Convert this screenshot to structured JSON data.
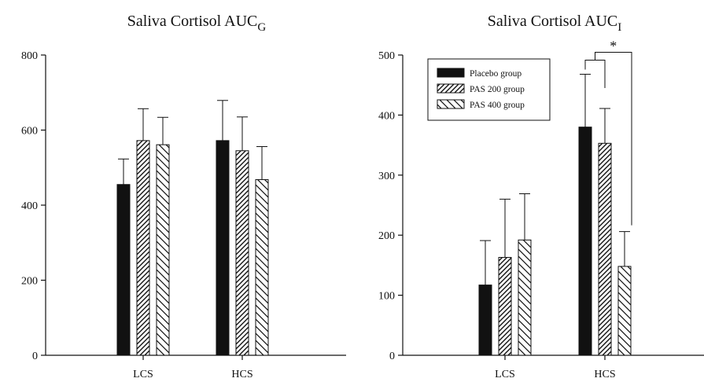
{
  "chart_data": [
    {
      "type": "bar",
      "title": "Saliva Cortisol AUC",
      "title_subscript": "G",
      "xlabel": "",
      "ylabel": "",
      "categories": [
        "LCS",
        "HCS"
      ],
      "ylim": [
        0,
        800
      ],
      "yticks": [
        0,
        200,
        400,
        600,
        800
      ],
      "grid": false,
      "series": [
        {
          "name": "Placebo group",
          "values": [
            455,
            572
          ],
          "errors": [
            68,
            107
          ],
          "fill": "solid",
          "color": "#111111"
        },
        {
          "name": "PAS 200 group",
          "values": [
            572,
            545
          ],
          "errors": [
            85,
            90
          ],
          "fill": "dense-diagonal",
          "color": "#111111"
        },
        {
          "name": "PAS 400 group",
          "values": [
            561,
            468
          ],
          "errors": [
            73,
            88
          ],
          "fill": "sparse-backdiagonal",
          "color": "#111111"
        }
      ]
    },
    {
      "type": "bar",
      "title": "Saliva Cortisol AUC",
      "title_subscript": "I",
      "xlabel": "",
      "ylabel": "",
      "categories": [
        "LCS",
        "HCS"
      ],
      "ylim": [
        0,
        500
      ],
      "yticks": [
        0,
        100,
        200,
        300,
        400,
        500
      ],
      "grid": false,
      "legend": {
        "placement": "top-left",
        "entries": [
          "Placebo group",
          "PAS 200 group",
          "PAS 400 group"
        ]
      },
      "significance": {
        "label": "*",
        "note_groups": "HCS: Placebo and PAS 200 vs PAS 400"
      },
      "series": [
        {
          "name": "Placebo group",
          "values": [
            117,
            380
          ],
          "errors": [
            74,
            88
          ],
          "fill": "solid",
          "color": "#111111"
        },
        {
          "name": "PAS 200 group",
          "values": [
            163,
            353
          ],
          "errors": [
            97,
            58
          ],
          "fill": "dense-diagonal",
          "color": "#111111"
        },
        {
          "name": "PAS 400 group",
          "values": [
            192,
            148
          ],
          "errors": [
            77,
            58
          ],
          "fill": "sparse-backdiagonal",
          "color": "#111111"
        }
      ]
    }
  ]
}
